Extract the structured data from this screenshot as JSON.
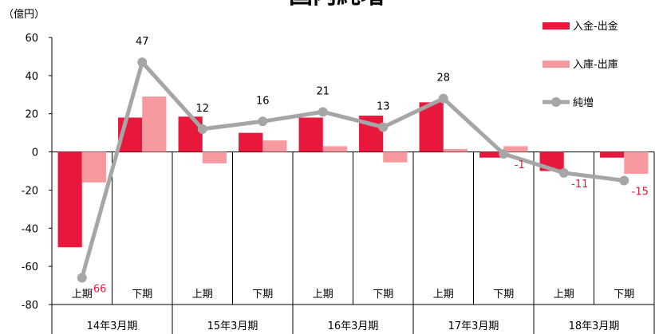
{
  "chart_data": {
    "type": "bar_line",
    "title": "国内純増",
    "unit_label": "（億円）",
    "categories": [
      "上期",
      "下期",
      "上期",
      "下期",
      "上期",
      "下期",
      "上期",
      "下期",
      "上期",
      "下期"
    ],
    "groups": [
      "14年3月期",
      "15年3月期",
      "16年3月期",
      "17年3月期",
      "18年3月期"
    ],
    "series": [
      {
        "name": "入金-出金",
        "type": "bar",
        "color": "#e8173c",
        "values": [
          -50,
          18,
          18.5,
          10,
          18,
          19,
          26,
          -3,
          -10,
          -3
        ]
      },
      {
        "name": "入庫-出庫",
        "type": "bar",
        "color": "#f79aa0",
        "values": [
          -16,
          29,
          -6,
          6,
          3,
          -5.5,
          1.5,
          3,
          0,
          -11.5
        ]
      },
      {
        "name": "純増",
        "type": "line",
        "color": "#a6a6a6",
        "values": [
          -66,
          47,
          12,
          16,
          21,
          13,
          28,
          -1,
          -11,
          -15
        ]
      }
    ],
    "ylim": [
      -80,
      60
    ],
    "yticks": [
      -80,
      -60,
      -40,
      -20,
      0,
      20,
      40,
      60
    ],
    "legend": "upper right",
    "negative_label_color": "#e8173c"
  }
}
